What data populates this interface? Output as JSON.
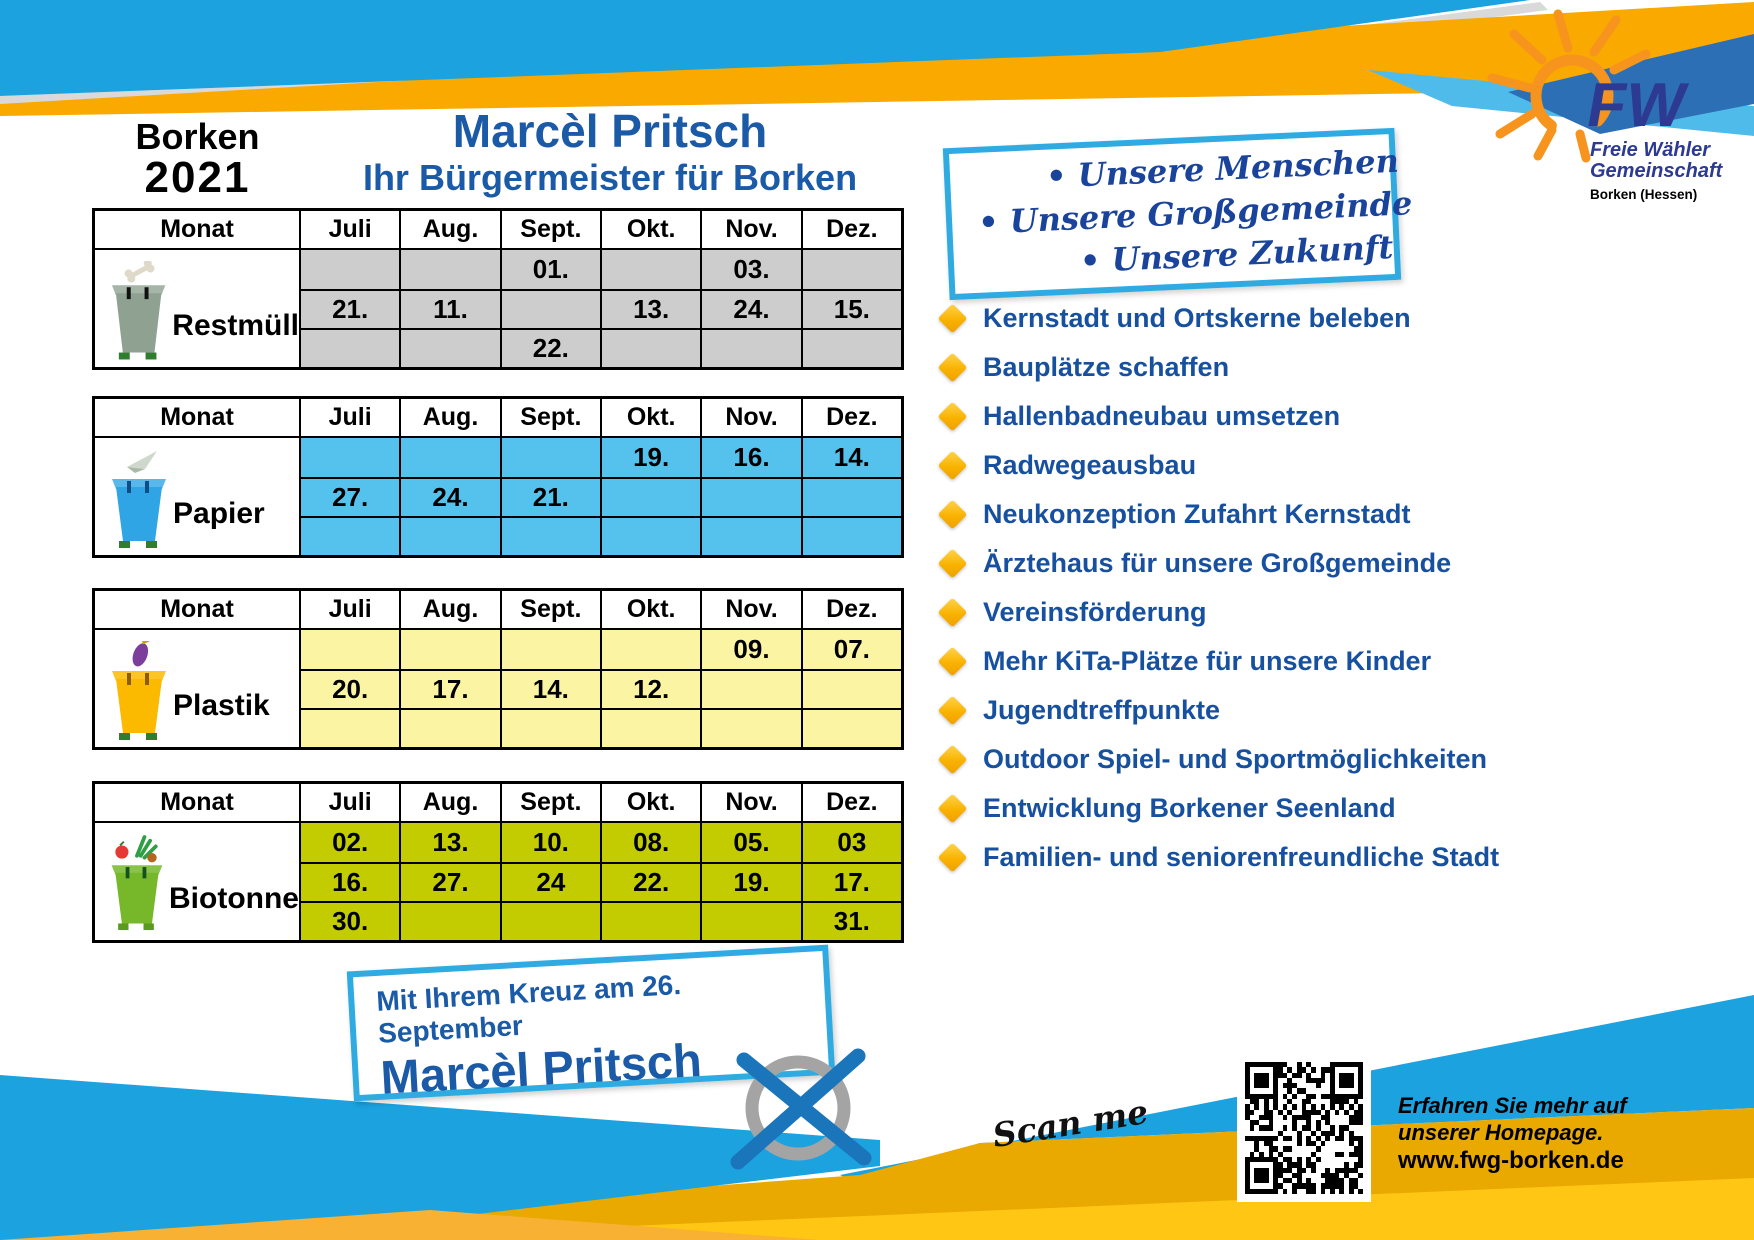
{
  "header": {
    "city": "Borken",
    "year": "2021",
    "title": "Marcèl Pritsch",
    "subtitle": "Ihr Bürgermeister für Borken",
    "logo": {
      "abbr": "FW",
      "org_line1": "Freie Wähler",
      "org_line2": "Gemeinschaft",
      "region": "Borken (Hessen)",
      "sun_icon": "sun-icon"
    }
  },
  "claims_box": {
    "items": [
      "• Unsere Menschen",
      "• Unsere Großgemeinde",
      "• Unsere Zukunft"
    ]
  },
  "bullets": [
    "Kernstadt und Ortskerne beleben",
    "Bauplätze schaffen",
    "Hallenbadneubau umsetzen",
    "Radwegeausbau",
    "Neukonzeption Zufahrt Kernstadt",
    "Ärztehaus für unsere Großgemeinde",
    "Vereinsförderung",
    "Mehr KiTa-Plätze für unsere Kinder",
    "Jugendtreffpunkte",
    "Outdoor Spiel- und Sportmöglichkeiten",
    "Entwicklung Borkener Seenland",
    "Familien- und seniorenfreundliche Stadt"
  ],
  "tables": [
    {
      "label": "Restmüll",
      "icon": "restmuell-bin-icon",
      "item_icon": "bone-icon",
      "cell_color": "#cdcdcd",
      "bin_color": "#8fa292",
      "headers": [
        "Monat",
        "Juli",
        "Aug.",
        "Sept.",
        "Okt.",
        "Nov.",
        "Dez."
      ],
      "rows": [
        [
          "",
          "",
          "01.",
          "",
          "03.",
          ""
        ],
        [
          "21.",
          "11.",
          "",
          "13.",
          "24.",
          "15."
        ],
        [
          "",
          "",
          "22.",
          "",
          "",
          ""
        ]
      ]
    },
    {
      "label": "Papier",
      "icon": "papier-bin-icon",
      "item_icon": "paper-plane-icon",
      "cell_color": "#55c2ee",
      "bin_color": "#2fa5e5",
      "headers": [
        "Monat",
        "Juli",
        "Aug.",
        "Sept.",
        "Okt.",
        "Nov.",
        "Dez."
      ],
      "rows": [
        [
          "",
          "",
          "",
          "19.",
          "16.",
          "14."
        ],
        [
          "27.",
          "24.",
          "21.",
          "",
          "",
          ""
        ],
        [
          "",
          "",
          "",
          "",
          "",
          ""
        ]
      ]
    },
    {
      "label": "Plastik",
      "icon": "plastik-bin-icon",
      "item_icon": "eggplant-icon",
      "cell_color": "#fbf5a3",
      "bin_color": "#fbba00",
      "headers": [
        "Monat",
        "Juli",
        "Aug.",
        "Sept.",
        "Okt.",
        "Nov.",
        "Dez."
      ],
      "rows": [
        [
          "",
          "",
          "",
          "",
          "09.",
          "07."
        ],
        [
          "20.",
          "17.",
          "14.",
          "12.",
          "",
          ""
        ],
        [
          "",
          "",
          "",
          "",
          "",
          ""
        ]
      ]
    },
    {
      "label": "Biotonne",
      "icon": "biotonne-bin-icon",
      "item_icon": "vegetables-icon",
      "cell_color": "#c2cc00",
      "bin_color": "#76b82a",
      "headers": [
        "Monat",
        "Juli",
        "Aug.",
        "Sept.",
        "Okt.",
        "Nov.",
        "Dez."
      ],
      "rows": [
        [
          "02.",
          "13.",
          "10.",
          "08.",
          "05.",
          "03"
        ],
        [
          "16.",
          "27.",
          "24",
          "22.",
          "19.",
          "17."
        ],
        [
          "30.",
          "",
          "",
          "",
          "",
          "31."
        ]
      ]
    }
  ],
  "footer": {
    "banner_line1": "Mit Ihrem Kreuz am 26. September",
    "banner_line2": "Marcèl Pritsch",
    "ballot_icon": "ballot-cross-icon",
    "scan_label": "Scan me",
    "qr_icon": "qr-code-icon",
    "homepage_line1": "Erfahren Sie mehr auf",
    "homepage_line2": "unserer Homepage.",
    "homepage_url": "www.fwg-borken.de"
  },
  "colors": {
    "sky_blue": "#1ba2df",
    "gold": "#f9a900",
    "dark_gold": "#e9a900",
    "accent_border_blue": "#2fabe1",
    "title_blue": "#1a5aa6",
    "list_blue": "#17509f",
    "fw_blue": "#2c3a92"
  }
}
